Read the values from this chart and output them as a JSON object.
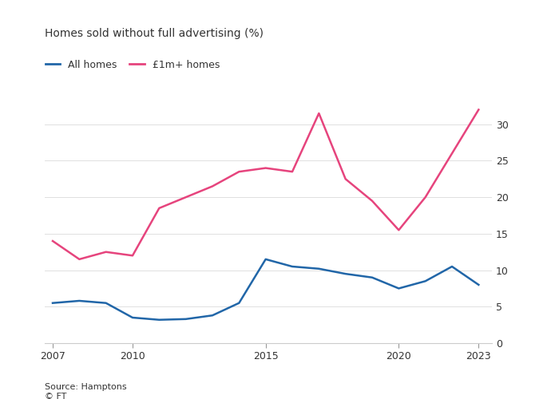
{
  "title": "Homes sold without full advertising (%)",
  "legend": [
    "All homes",
    "£1m+ homes"
  ],
  "line_colors": [
    "#2166a8",
    "#e6447d"
  ],
  "source": "Source: Hamptons",
  "ft_label": "© FT",
  "years_all": [
    2007,
    2008,
    2009,
    2010,
    2011,
    2012,
    2013,
    2014,
    2015,
    2016,
    2017,
    2018,
    2019,
    2020,
    2021,
    2022,
    2023
  ],
  "values_all": [
    5.5,
    5.8,
    5.5,
    3.5,
    3.2,
    3.3,
    3.8,
    5.5,
    11.5,
    10.5,
    10.2,
    9.5,
    9.0,
    7.5,
    8.5,
    10.5,
    8.0
  ],
  "years_1m": [
    2007,
    2008,
    2009,
    2010,
    2011,
    2012,
    2013,
    2014,
    2015,
    2016,
    2017,
    2018,
    2019,
    2020,
    2021,
    2022,
    2023
  ],
  "values_1m": [
    14.0,
    11.5,
    12.5,
    12.0,
    18.5,
    20.0,
    21.5,
    23.5,
    24.0,
    23.5,
    31.5,
    22.5,
    19.5,
    15.5,
    20.0,
    26.0,
    32.0
  ],
  "ylim": [
    0,
    35
  ],
  "yticks": [
    0,
    5,
    10,
    15,
    20,
    25,
    30
  ],
  "xlim_min": 2006.7,
  "xlim_max": 2023.5,
  "xticks": [
    2007,
    2010,
    2015,
    2020,
    2023
  ],
  "background_color": "#ffffff",
  "grid_color": "#e0e0e0",
  "text_color": "#333333",
  "tick_color": "#999999",
  "spine_color": "#cccccc",
  "line_width": 1.8,
  "title_fontsize": 10,
  "legend_fontsize": 9,
  "tick_fontsize": 9,
  "source_fontsize": 8
}
